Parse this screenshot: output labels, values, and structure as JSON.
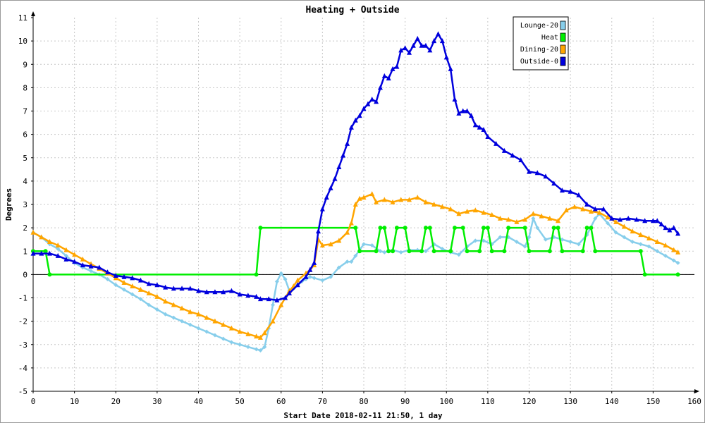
{
  "chart_data": {
    "type": "line",
    "title": "Heating + Outside",
    "xlabel": "Start Date 2018-02-11 21:50, 1 day",
    "ylabel": "Degrees",
    "xlim": [
      0,
      160
    ],
    "ylim": [
      -5,
      11
    ],
    "x_ticks": [
      0,
      10,
      20,
      30,
      40,
      50,
      60,
      70,
      80,
      90,
      100,
      110,
      120,
      130,
      140,
      150,
      160
    ],
    "y_ticks": [
      -5,
      -4,
      -3,
      -2,
      -1,
      0,
      1,
      2,
      3,
      4,
      5,
      6,
      7,
      8,
      9,
      10,
      11
    ],
    "grid": true,
    "legend_position": "top-right",
    "series": [
      {
        "name": "Lounge-20",
        "color": "#87ceeb",
        "marker": "diamond",
        "points": [
          [
            0,
            1.8
          ],
          [
            2,
            1.6
          ],
          [
            4,
            1.3
          ],
          [
            6,
            1.1
          ],
          [
            8,
            0.8
          ],
          [
            10,
            0.5
          ],
          [
            12,
            0.3
          ],
          [
            14,
            0.15
          ],
          [
            16,
            0.0
          ],
          [
            18,
            -0.2
          ],
          [
            20,
            -0.45
          ],
          [
            22,
            -0.65
          ],
          [
            24,
            -0.85
          ],
          [
            26,
            -1.05
          ],
          [
            28,
            -1.3
          ],
          [
            30,
            -1.5
          ],
          [
            32,
            -1.7
          ],
          [
            34,
            -1.85
          ],
          [
            36,
            -2.0
          ],
          [
            38,
            -2.15
          ],
          [
            40,
            -2.3
          ],
          [
            42,
            -2.45
          ],
          [
            44,
            -2.6
          ],
          [
            46,
            -2.75
          ],
          [
            48,
            -2.9
          ],
          [
            50,
            -3.0
          ],
          [
            52,
            -3.1
          ],
          [
            54,
            -3.2
          ],
          [
            55,
            -3.25
          ],
          [
            56,
            -3.1
          ],
          [
            57,
            -2.3
          ],
          [
            58,
            -1.3
          ],
          [
            59,
            -0.3
          ],
          [
            60,
            0.05
          ],
          [
            61,
            -0.2
          ],
          [
            62,
            -0.7
          ],
          [
            63,
            -0.6
          ],
          [
            64,
            -0.45
          ],
          [
            65,
            -0.3
          ],
          [
            66,
            -0.2
          ],
          [
            67,
            -0.1
          ],
          [
            68,
            -0.15
          ],
          [
            70,
            -0.25
          ],
          [
            72,
            -0.1
          ],
          [
            74,
            0.3
          ],
          [
            76,
            0.55
          ],
          [
            77,
            0.55
          ],
          [
            78,
            0.8
          ],
          [
            80,
            1.3
          ],
          [
            82,
            1.25
          ],
          [
            84,
            1.0
          ],
          [
            85,
            0.95
          ],
          [
            87,
            1.05
          ],
          [
            89,
            0.95
          ],
          [
            91,
            1.05
          ],
          [
            93,
            1.05
          ],
          [
            95,
            1.0
          ],
          [
            97,
            1.3
          ],
          [
            99,
            1.1
          ],
          [
            101,
            0.95
          ],
          [
            103,
            0.85
          ],
          [
            105,
            1.2
          ],
          [
            107,
            1.45
          ],
          [
            109,
            1.45
          ],
          [
            111,
            1.3
          ],
          [
            113,
            1.6
          ],
          [
            115,
            1.6
          ],
          [
            117,
            1.4
          ],
          [
            119,
            1.2
          ],
          [
            120,
            1.6
          ],
          [
            121,
            2.4
          ],
          [
            122,
            2.0
          ],
          [
            124,
            1.5
          ],
          [
            126,
            1.6
          ],
          [
            128,
            1.5
          ],
          [
            130,
            1.4
          ],
          [
            132,
            1.3
          ],
          [
            134,
            1.7
          ],
          [
            136,
            2.4
          ],
          [
            137,
            2.6
          ],
          [
            139,
            2.2
          ],
          [
            141,
            1.8
          ],
          [
            143,
            1.6
          ],
          [
            145,
            1.4
          ],
          [
            147,
            1.3
          ],
          [
            149,
            1.2
          ],
          [
            151,
            1.0
          ],
          [
            153,
            0.8
          ],
          [
            155,
            0.6
          ],
          [
            156,
            0.5
          ]
        ]
      },
      {
        "name": "Heat",
        "color": "#00ee00",
        "marker": "circle",
        "points": [
          [
            0,
            1
          ],
          [
            3,
            1
          ],
          [
            4,
            0
          ],
          [
            54,
            0
          ],
          [
            55,
            2
          ],
          [
            78,
            2
          ],
          [
            79,
            1
          ],
          [
            83,
            1
          ],
          [
            84,
            2
          ],
          [
            85,
            2
          ],
          [
            86,
            1
          ],
          [
            87,
            1
          ],
          [
            88,
            2
          ],
          [
            90,
            2
          ],
          [
            91,
            1
          ],
          [
            94,
            1
          ],
          [
            95,
            2
          ],
          [
            96,
            2
          ],
          [
            97,
            1
          ],
          [
            101,
            1
          ],
          [
            102,
            2
          ],
          [
            104,
            2
          ],
          [
            105,
            1
          ],
          [
            108,
            1
          ],
          [
            109,
            2
          ],
          [
            110,
            2
          ],
          [
            111,
            1
          ],
          [
            114,
            1
          ],
          [
            115,
            2
          ],
          [
            119,
            2
          ],
          [
            120,
            1
          ],
          [
            125,
            1
          ],
          [
            126,
            2
          ],
          [
            127,
            2
          ],
          [
            128,
            1
          ],
          [
            133,
            1
          ],
          [
            134,
            2
          ],
          [
            135,
            2
          ],
          [
            136,
            1
          ],
          [
            147,
            1
          ],
          [
            148,
            0
          ],
          [
            156,
            0
          ]
        ]
      },
      {
        "name": "Dining-20",
        "color": "#ffa500",
        "marker": "triangle",
        "points": [
          [
            0,
            1.8
          ],
          [
            2,
            1.6
          ],
          [
            4,
            1.4
          ],
          [
            6,
            1.25
          ],
          [
            8,
            1.05
          ],
          [
            10,
            0.85
          ],
          [
            12,
            0.65
          ],
          [
            14,
            0.45
          ],
          [
            16,
            0.25
          ],
          [
            18,
            0.05
          ],
          [
            20,
            -0.15
          ],
          [
            22,
            -0.35
          ],
          [
            24,
            -0.5
          ],
          [
            26,
            -0.65
          ],
          [
            28,
            -0.8
          ],
          [
            30,
            -0.95
          ],
          [
            32,
            -1.15
          ],
          [
            34,
            -1.3
          ],
          [
            36,
            -1.45
          ],
          [
            38,
            -1.6
          ],
          [
            40,
            -1.7
          ],
          [
            42,
            -1.85
          ],
          [
            44,
            -2.0
          ],
          [
            46,
            -2.15
          ],
          [
            48,
            -2.3
          ],
          [
            50,
            -2.45
          ],
          [
            52,
            -2.55
          ],
          [
            54,
            -2.65
          ],
          [
            55,
            -2.7
          ],
          [
            56,
            -2.5
          ],
          [
            58,
            -2.0
          ],
          [
            60,
            -1.3
          ],
          [
            62,
            -0.7
          ],
          [
            63,
            -0.5
          ],
          [
            64,
            -0.25
          ],
          [
            66,
            0.05
          ],
          [
            67,
            0.2
          ],
          [
            68,
            0.4
          ],
          [
            69,
            1.5
          ],
          [
            70,
            1.25
          ],
          [
            72,
            1.3
          ],
          [
            74,
            1.45
          ],
          [
            76,
            1.8
          ],
          [
            77,
            2.2
          ],
          [
            78,
            3.0
          ],
          [
            79,
            3.25
          ],
          [
            80,
            3.3
          ],
          [
            82,
            3.45
          ],
          [
            83,
            3.1
          ],
          [
            85,
            3.2
          ],
          [
            87,
            3.1
          ],
          [
            89,
            3.2
          ],
          [
            91,
            3.2
          ],
          [
            93,
            3.3
          ],
          [
            95,
            3.1
          ],
          [
            97,
            3.0
          ],
          [
            99,
            2.9
          ],
          [
            101,
            2.8
          ],
          [
            103,
            2.6
          ],
          [
            105,
            2.7
          ],
          [
            107,
            2.75
          ],
          [
            109,
            2.65
          ],
          [
            111,
            2.55
          ],
          [
            113,
            2.4
          ],
          [
            115,
            2.35
          ],
          [
            117,
            2.25
          ],
          [
            119,
            2.35
          ],
          [
            121,
            2.6
          ],
          [
            123,
            2.5
          ],
          [
            125,
            2.4
          ],
          [
            127,
            2.3
          ],
          [
            129,
            2.75
          ],
          [
            131,
            2.9
          ],
          [
            133,
            2.8
          ],
          [
            135,
            2.7
          ],
          [
            137,
            2.65
          ],
          [
            139,
            2.45
          ],
          [
            141,
            2.25
          ],
          [
            143,
            2.05
          ],
          [
            145,
            1.85
          ],
          [
            147,
            1.7
          ],
          [
            149,
            1.55
          ],
          [
            151,
            1.4
          ],
          [
            153,
            1.25
          ],
          [
            155,
            1.05
          ],
          [
            156,
            0.95
          ]
        ]
      },
      {
        "name": "Outside-0",
        "color": "#0000dd",
        "marker": "triangle",
        "points": [
          [
            0,
            0.9
          ],
          [
            2,
            0.9
          ],
          [
            4,
            0.9
          ],
          [
            6,
            0.8
          ],
          [
            8,
            0.65
          ],
          [
            10,
            0.55
          ],
          [
            12,
            0.4
          ],
          [
            14,
            0.35
          ],
          [
            16,
            0.3
          ],
          [
            18,
            0.1
          ],
          [
            20,
            -0.05
          ],
          [
            22,
            -0.1
          ],
          [
            24,
            -0.15
          ],
          [
            26,
            -0.25
          ],
          [
            28,
            -0.4
          ],
          [
            30,
            -0.45
          ],
          [
            32,
            -0.55
          ],
          [
            34,
            -0.6
          ],
          [
            36,
            -0.6
          ],
          [
            38,
            -0.6
          ],
          [
            40,
            -0.7
          ],
          [
            42,
            -0.75
          ],
          [
            44,
            -0.75
          ],
          [
            46,
            -0.75
          ],
          [
            48,
            -0.7
          ],
          [
            50,
            -0.85
          ],
          [
            52,
            -0.9
          ],
          [
            54,
            -0.95
          ],
          [
            55,
            -1.05
          ],
          [
            57,
            -1.05
          ],
          [
            59,
            -1.1
          ],
          [
            61,
            -1.0
          ],
          [
            62,
            -0.8
          ],
          [
            64,
            -0.45
          ],
          [
            66,
            -0.1
          ],
          [
            67,
            0.2
          ],
          [
            68,
            0.5
          ],
          [
            69,
            1.85
          ],
          [
            70,
            2.8
          ],
          [
            71,
            3.3
          ],
          [
            72,
            3.7
          ],
          [
            73,
            4.1
          ],
          [
            74,
            4.6
          ],
          [
            75,
            5.1
          ],
          [
            76,
            5.6
          ],
          [
            77,
            6.3
          ],
          [
            78,
            6.6
          ],
          [
            79,
            6.8
          ],
          [
            80,
            7.1
          ],
          [
            81,
            7.3
          ],
          [
            82,
            7.5
          ],
          [
            83,
            7.4
          ],
          [
            84,
            8.0
          ],
          [
            85,
            8.5
          ],
          [
            86,
            8.4
          ],
          [
            87,
            8.8
          ],
          [
            88,
            8.9
          ],
          [
            89,
            9.6
          ],
          [
            90,
            9.7
          ],
          [
            91,
            9.5
          ],
          [
            92,
            9.8
          ],
          [
            93,
            10.1
          ],
          [
            94,
            9.8
          ],
          [
            95,
            9.8
          ],
          [
            96,
            9.6
          ],
          [
            97,
            10.0
          ],
          [
            98,
            10.3
          ],
          [
            99,
            10.0
          ],
          [
            100,
            9.3
          ],
          [
            101,
            8.8
          ],
          [
            102,
            7.5
          ],
          [
            103,
            6.9
          ],
          [
            104,
            7.0
          ],
          [
            105,
            7.0
          ],
          [
            106,
            6.8
          ],
          [
            107,
            6.4
          ],
          [
            108,
            6.3
          ],
          [
            109,
            6.2
          ],
          [
            110,
            5.9
          ],
          [
            112,
            5.6
          ],
          [
            114,
            5.3
          ],
          [
            116,
            5.1
          ],
          [
            118,
            4.9
          ],
          [
            120,
            4.4
          ],
          [
            122,
            4.35
          ],
          [
            124,
            4.2
          ],
          [
            126,
            3.9
          ],
          [
            128,
            3.6
          ],
          [
            130,
            3.55
          ],
          [
            132,
            3.4
          ],
          [
            134,
            3.0
          ],
          [
            136,
            2.8
          ],
          [
            138,
            2.8
          ],
          [
            140,
            2.4
          ],
          [
            142,
            2.35
          ],
          [
            144,
            2.4
          ],
          [
            146,
            2.35
          ],
          [
            148,
            2.3
          ],
          [
            150,
            2.3
          ],
          [
            151,
            2.3
          ],
          [
            152,
            2.15
          ],
          [
            153,
            2.0
          ],
          [
            154,
            1.9
          ],
          [
            155,
            2.0
          ],
          [
            156,
            1.75
          ]
        ]
      }
    ]
  }
}
